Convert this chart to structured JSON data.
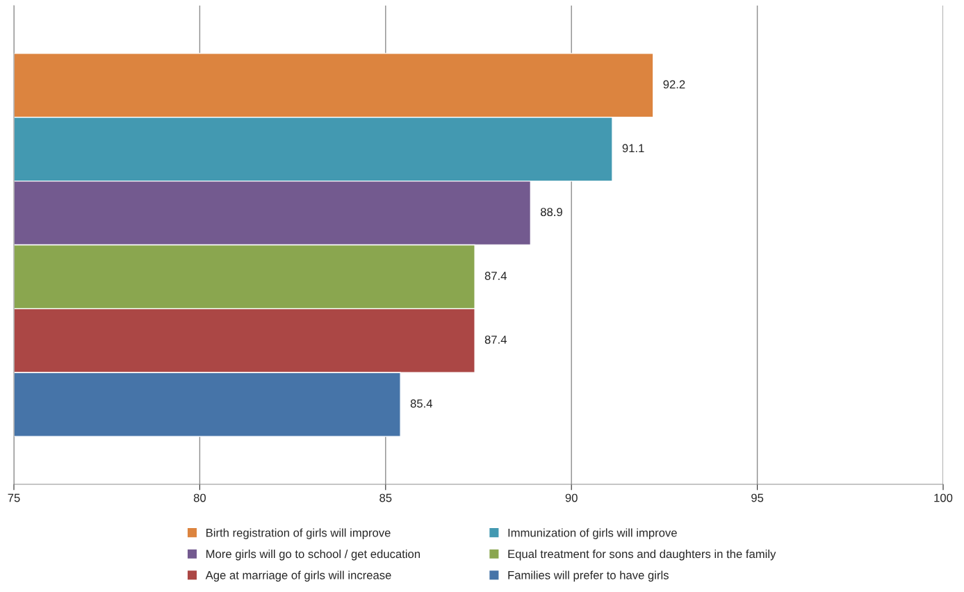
{
  "chart_data": {
    "type": "bar",
    "orientation": "horizontal",
    "categories": [
      null,
      null,
      null,
      null,
      null,
      null
    ],
    "series": [
      {
        "name": "Birth registration of girls will improve",
        "color": "#dc843f",
        "values": [
          92.2,
          null,
          null,
          null,
          null,
          null
        ]
      },
      {
        "name": "Immunization of girls will improve",
        "color": "#4399b1",
        "values": [
          null,
          91.1,
          null,
          null,
          null,
          null
        ]
      },
      {
        "name": "More girls will go to school / get education",
        "color": "#735a8f",
        "values": [
          null,
          null,
          88.9,
          null,
          null,
          null
        ]
      },
      {
        "name": "Equal treatment for sons and daughters in the family",
        "color": "#8aa64f",
        "values": [
          null,
          null,
          null,
          87.4,
          null,
          null
        ]
      },
      {
        "name": "Age at marriage of girls will increase",
        "color": "#ab4745",
        "values": [
          null,
          null,
          null,
          null,
          87.4,
          null
        ]
      },
      {
        "name": "Families will prefer to have girls",
        "color": "#4674a8",
        "values": [
          null,
          null,
          null,
          null,
          null,
          85.4
        ]
      }
    ],
    "xlim": [
      75,
      100
    ],
    "xticks": [
      75,
      80,
      85,
      90,
      95,
      100
    ],
    "grid": "x",
    "legend": "bottom",
    "data_labels": true,
    "tick_labels": "x"
  }
}
